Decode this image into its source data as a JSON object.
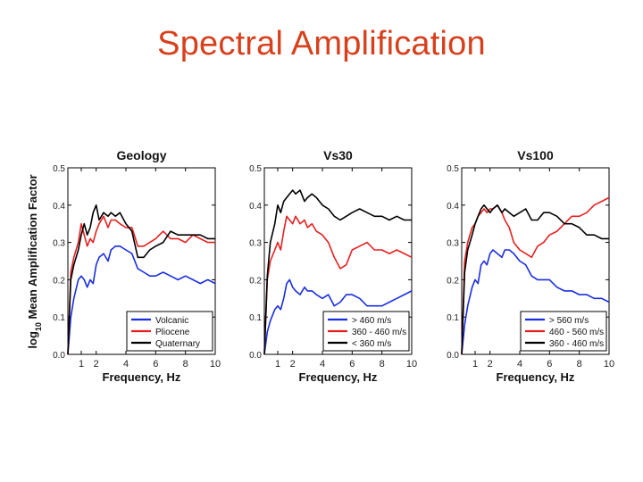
{
  "slide": {
    "title": "Spectral Amplification"
  },
  "colors": {
    "red": "#e62020",
    "blue": "#1a2ee0",
    "black": "#000000",
    "title": "#d8401c"
  },
  "shared": {
    "ylabel_prefix": "log",
    "ylabel_sub": "10",
    "ylabel_rest": " Mean Amplification Factor",
    "xlabel": "Frequency, Hz"
  },
  "chart_data": [
    {
      "type": "line",
      "title": "Geology",
      "xlabel": "Frequency, Hz",
      "ylabel": "log10 Mean Amplification Factor",
      "xlim": [
        0.1,
        10
      ],
      "ylim": [
        0,
        0.5
      ],
      "xticks": [
        1,
        2,
        4,
        6,
        8,
        10
      ],
      "yticks": [
        0.0,
        0.1,
        0.2,
        0.3,
        0.4,
        0.5
      ],
      "ytick_labels": [
        "0.0",
        "0.1",
        "0.2",
        "0.3",
        "0.4",
        "0.5"
      ],
      "legend_position": "bottom-right",
      "series": [
        {
          "name": "Volcanic",
          "color": "blue",
          "x": [
            0.1,
            0.3,
            0.5,
            0.8,
            1.0,
            1.2,
            1.4,
            1.6,
            1.8,
            2.0,
            2.2,
            2.5,
            2.8,
            3.0,
            3.3,
            3.6,
            4.0,
            4.4,
            4.8,
            5.2,
            5.6,
            6.0,
            6.5,
            7.0,
            7.5,
            8.0,
            8.5,
            9.0,
            9.5,
            10.0
          ],
          "y": [
            0.0,
            0.1,
            0.15,
            0.2,
            0.21,
            0.2,
            0.18,
            0.2,
            0.19,
            0.24,
            0.26,
            0.27,
            0.25,
            0.28,
            0.29,
            0.29,
            0.28,
            0.27,
            0.23,
            0.22,
            0.21,
            0.21,
            0.22,
            0.21,
            0.2,
            0.21,
            0.2,
            0.19,
            0.2,
            0.19
          ]
        },
        {
          "name": "Pliocene",
          "color": "red",
          "x": [
            0.1,
            0.3,
            0.5,
            0.8,
            1.0,
            1.2,
            1.4,
            1.6,
            1.8,
            2.0,
            2.2,
            2.5,
            2.8,
            3.0,
            3.3,
            3.6,
            4.0,
            4.4,
            4.8,
            5.2,
            5.6,
            6.0,
            6.5,
            7.0,
            7.5,
            8.0,
            8.5,
            9.0,
            9.5,
            10.0
          ],
          "y": [
            0.0,
            0.22,
            0.26,
            0.3,
            0.35,
            0.32,
            0.29,
            0.31,
            0.3,
            0.33,
            0.35,
            0.37,
            0.34,
            0.36,
            0.36,
            0.35,
            0.34,
            0.34,
            0.29,
            0.29,
            0.3,
            0.31,
            0.33,
            0.31,
            0.31,
            0.3,
            0.32,
            0.31,
            0.3,
            0.3
          ]
        },
        {
          "name": "Quaternary",
          "color": "black",
          "x": [
            0.1,
            0.3,
            0.5,
            0.8,
            1.0,
            1.2,
            1.4,
            1.6,
            1.8,
            2.0,
            2.2,
            2.5,
            2.8,
            3.0,
            3.3,
            3.6,
            4.0,
            4.4,
            4.8,
            5.2,
            5.6,
            6.0,
            6.5,
            7.0,
            7.5,
            8.0,
            8.5,
            9.0,
            9.5,
            10.0
          ],
          "y": [
            0.0,
            0.2,
            0.24,
            0.28,
            0.32,
            0.35,
            0.32,
            0.34,
            0.38,
            0.4,
            0.36,
            0.38,
            0.37,
            0.38,
            0.37,
            0.38,
            0.35,
            0.33,
            0.26,
            0.26,
            0.28,
            0.29,
            0.3,
            0.33,
            0.32,
            0.32,
            0.32,
            0.32,
            0.31,
            0.31
          ]
        }
      ]
    },
    {
      "type": "line",
      "title": "Vs30",
      "xlabel": "Frequency, Hz",
      "ylabel": "log10 Mean Amplification Factor",
      "xlim": [
        0.1,
        10
      ],
      "ylim": [
        0,
        0.5
      ],
      "xticks": [
        1,
        2,
        4,
        6,
        8,
        10
      ],
      "yticks": [
        0.0,
        0.1,
        0.2,
        0.3,
        0.4,
        0.5
      ],
      "ytick_labels": [
        "0.0",
        "0.1",
        "0.2",
        "0.3",
        "0.4",
        "0.5"
      ],
      "legend_position": "bottom-right",
      "series": [
        {
          "name": "> 460 m/s",
          "color": "blue",
          "x": [
            0.1,
            0.3,
            0.5,
            0.8,
            1.0,
            1.2,
            1.4,
            1.6,
            1.8,
            2.0,
            2.2,
            2.5,
            2.8,
            3.0,
            3.3,
            3.6,
            4.0,
            4.4,
            4.8,
            5.2,
            5.6,
            6.0,
            6.5,
            7.0,
            7.5,
            8.0,
            8.5,
            9.0,
            9.5,
            10.0
          ],
          "y": [
            0.0,
            0.06,
            0.09,
            0.12,
            0.13,
            0.12,
            0.15,
            0.19,
            0.2,
            0.18,
            0.17,
            0.16,
            0.18,
            0.17,
            0.17,
            0.16,
            0.15,
            0.16,
            0.13,
            0.14,
            0.16,
            0.16,
            0.15,
            0.13,
            0.13,
            0.13,
            0.14,
            0.15,
            0.16,
            0.17
          ]
        },
        {
          "name": "360 - 460 m/s",
          "color": "red",
          "x": [
            0.1,
            0.3,
            0.5,
            0.8,
            1.0,
            1.2,
            1.4,
            1.6,
            1.8,
            2.0,
            2.2,
            2.5,
            2.8,
            3.0,
            3.3,
            3.6,
            4.0,
            4.4,
            4.8,
            5.2,
            5.6,
            6.0,
            6.5,
            7.0,
            7.5,
            8.0,
            8.5,
            9.0,
            9.5,
            10.0
          ],
          "y": [
            0.0,
            0.2,
            0.25,
            0.28,
            0.3,
            0.28,
            0.33,
            0.37,
            0.36,
            0.35,
            0.37,
            0.35,
            0.36,
            0.34,
            0.35,
            0.33,
            0.32,
            0.3,
            0.26,
            0.23,
            0.24,
            0.28,
            0.29,
            0.3,
            0.28,
            0.28,
            0.27,
            0.28,
            0.27,
            0.26
          ]
        },
        {
          "name": "< 360 m/s",
          "color": "black",
          "x": [
            0.1,
            0.3,
            0.5,
            0.8,
            1.0,
            1.2,
            1.4,
            1.6,
            1.8,
            2.0,
            2.2,
            2.5,
            2.8,
            3.0,
            3.3,
            3.6,
            4.0,
            4.4,
            4.8,
            5.2,
            5.6,
            6.0,
            6.5,
            7.0,
            7.5,
            8.0,
            8.5,
            9.0,
            9.5,
            10.0
          ],
          "y": [
            0.0,
            0.21,
            0.3,
            0.35,
            0.4,
            0.38,
            0.41,
            0.42,
            0.43,
            0.44,
            0.43,
            0.44,
            0.41,
            0.42,
            0.43,
            0.42,
            0.4,
            0.39,
            0.37,
            0.36,
            0.37,
            0.38,
            0.39,
            0.38,
            0.37,
            0.37,
            0.36,
            0.37,
            0.36,
            0.36
          ]
        }
      ]
    },
    {
      "type": "line",
      "title": "Vs100",
      "xlabel": "Frequency, Hz",
      "ylabel": "log10 Mean Amplification Factor",
      "xlim": [
        0.1,
        10
      ],
      "ylim": [
        0,
        0.5
      ],
      "xticks": [
        1,
        2,
        4,
        6,
        8,
        10
      ],
      "yticks": [
        0.0,
        0.1,
        0.2,
        0.3,
        0.4,
        0.5
      ],
      "ytick_labels": [
        "0.0",
        "0.1",
        "0.2",
        "0.3",
        "0.4",
        "0.5"
      ],
      "legend_position": "bottom-right",
      "series": [
        {
          "name": "> 560 m/s",
          "color": "blue",
          "x": [
            0.1,
            0.3,
            0.5,
            0.8,
            1.0,
            1.2,
            1.4,
            1.6,
            1.8,
            2.0,
            2.2,
            2.5,
            2.8,
            3.0,
            3.3,
            3.6,
            4.0,
            4.4,
            4.8,
            5.2,
            5.6,
            6.0,
            6.5,
            7.0,
            7.5,
            8.0,
            8.5,
            9.0,
            9.5,
            10.0
          ],
          "y": [
            0.0,
            0.08,
            0.13,
            0.18,
            0.2,
            0.19,
            0.24,
            0.25,
            0.24,
            0.27,
            0.28,
            0.27,
            0.26,
            0.28,
            0.28,
            0.27,
            0.25,
            0.24,
            0.21,
            0.2,
            0.2,
            0.2,
            0.18,
            0.17,
            0.17,
            0.16,
            0.16,
            0.15,
            0.15,
            0.14
          ]
        },
        {
          "name": "460 - 560 m/s",
          "color": "red",
          "x": [
            0.1,
            0.3,
            0.5,
            0.8,
            1.0,
            1.2,
            1.4,
            1.6,
            1.8,
            2.0,
            2.2,
            2.5,
            2.8,
            3.0,
            3.3,
            3.6,
            4.0,
            4.4,
            4.8,
            5.2,
            5.6,
            6.0,
            6.5,
            7.0,
            7.5,
            8.0,
            8.5,
            9.0,
            9.5,
            10.0
          ],
          "y": [
            0.0,
            0.25,
            0.3,
            0.34,
            0.35,
            0.37,
            0.38,
            0.39,
            0.38,
            0.39,
            0.39,
            0.4,
            0.38,
            0.36,
            0.34,
            0.3,
            0.28,
            0.27,
            0.26,
            0.29,
            0.3,
            0.32,
            0.33,
            0.35,
            0.37,
            0.37,
            0.38,
            0.4,
            0.41,
            0.42
          ]
        },
        {
          "name": "360 - 460 m/s",
          "color": "black",
          "x": [
            0.1,
            0.3,
            0.5,
            0.8,
            1.0,
            1.2,
            1.4,
            1.6,
            1.8,
            2.0,
            2.2,
            2.5,
            2.8,
            3.0,
            3.3,
            3.6,
            4.0,
            4.4,
            4.8,
            5.2,
            5.6,
            6.0,
            6.5,
            7.0,
            7.5,
            8.0,
            8.5,
            9.0,
            9.5,
            10.0
          ],
          "y": [
            0.0,
            0.22,
            0.28,
            0.32,
            0.35,
            0.37,
            0.39,
            0.4,
            0.39,
            0.38,
            0.39,
            0.4,
            0.38,
            0.39,
            0.38,
            0.37,
            0.38,
            0.39,
            0.36,
            0.36,
            0.38,
            0.38,
            0.37,
            0.35,
            0.35,
            0.34,
            0.32,
            0.32,
            0.31,
            0.31
          ]
        }
      ]
    }
  ]
}
